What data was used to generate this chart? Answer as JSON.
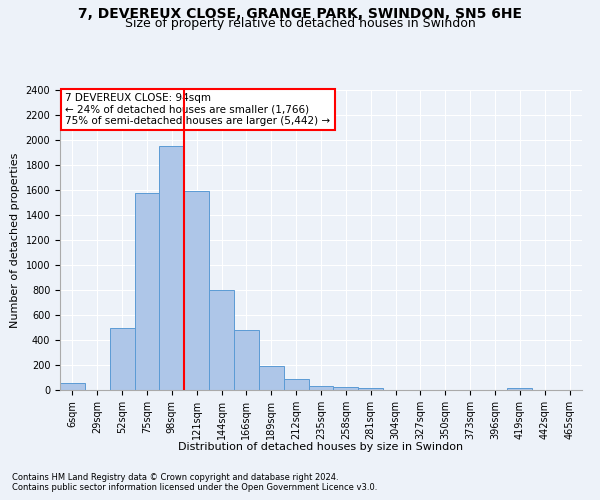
{
  "title1": "7, DEVEREUX CLOSE, GRANGE PARK, SWINDON, SN5 6HE",
  "title2": "Size of property relative to detached houses in Swindon",
  "xlabel": "Distribution of detached houses by size in Swindon",
  "ylabel": "Number of detached properties",
  "categories": [
    "6sqm",
    "29sqm",
    "52sqm",
    "75sqm",
    "98sqm",
    "121sqm",
    "144sqm",
    "166sqm",
    "189sqm",
    "212sqm",
    "235sqm",
    "258sqm",
    "281sqm",
    "304sqm",
    "327sqm",
    "350sqm",
    "373sqm",
    "396sqm",
    "419sqm",
    "442sqm",
    "465sqm"
  ],
  "values": [
    55,
    0,
    500,
    1580,
    1950,
    1590,
    800,
    480,
    195,
    90,
    35,
    25,
    20,
    0,
    0,
    0,
    0,
    0,
    20,
    0,
    0
  ],
  "bar_color": "#aec6e8",
  "bar_edge_color": "#5b9bd5",
  "vline_color": "red",
  "vline_x": 4.5,
  "annotation_text": "7 DEVEREUX CLOSE: 94sqm\n← 24% of detached houses are smaller (1,766)\n75% of semi-detached houses are larger (5,442) →",
  "annotation_box_color": "white",
  "annotation_box_edge_color": "red",
  "ylim_max": 2400,
  "yticks": [
    0,
    200,
    400,
    600,
    800,
    1000,
    1200,
    1400,
    1600,
    1800,
    2000,
    2200,
    2400
  ],
  "footnote1": "Contains HM Land Registry data © Crown copyright and database right 2024.",
  "footnote2": "Contains public sector information licensed under the Open Government Licence v3.0.",
  "bg_color": "#edf2f9",
  "plot_bg_color": "#edf2f9",
  "title1_fontsize": 10,
  "title2_fontsize": 9,
  "axis_label_fontsize": 8,
  "tick_fontsize": 7,
  "annot_fontsize": 7.5,
  "footnote_fontsize": 6
}
